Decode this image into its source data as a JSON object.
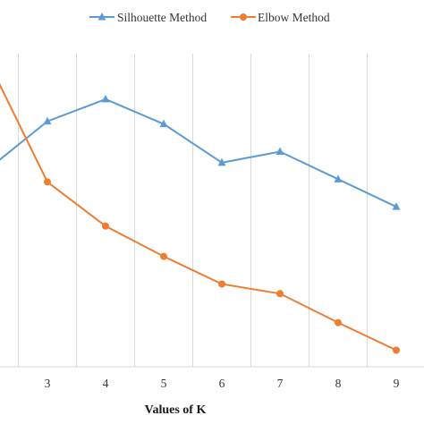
{
  "chart_data": {
    "type": "line",
    "title": "",
    "xlabel": "Values of K",
    "ylabel": "",
    "x": [
      3,
      4,
      5,
      6,
      7,
      8,
      9
    ],
    "xlim": [
      2,
      9.5
    ],
    "series": [
      {
        "name": "Silhouette Method",
        "color": "#5b9bd5",
        "marker": "triangle",
        "points": [
          [
            2,
            0.52
          ],
          [
            3,
            0.69
          ],
          [
            4,
            0.77
          ],
          [
            5,
            0.68
          ],
          [
            6,
            0.54
          ],
          [
            7,
            0.58
          ],
          [
            8,
            0.48
          ],
          [
            9,
            0.38
          ]
        ]
      },
      {
        "name": "Elbow Method",
        "color": "#ed7d31",
        "marker": "circle",
        "points": [
          [
            2,
            0.9
          ],
          [
            3,
            0.47
          ],
          [
            4,
            0.31
          ],
          [
            5,
            0.2
          ],
          [
            6,
            0.1
          ],
          [
            7,
            0.065
          ],
          [
            8,
            -0.04
          ],
          [
            9,
            -0.14
          ]
        ]
      }
    ],
    "ylim": [
      -0.2,
      1.0
    ],
    "grid": {
      "vertical": true,
      "horizontal": false
    },
    "gridline_color": "#d9d9d9",
    "legend_position": "top"
  }
}
